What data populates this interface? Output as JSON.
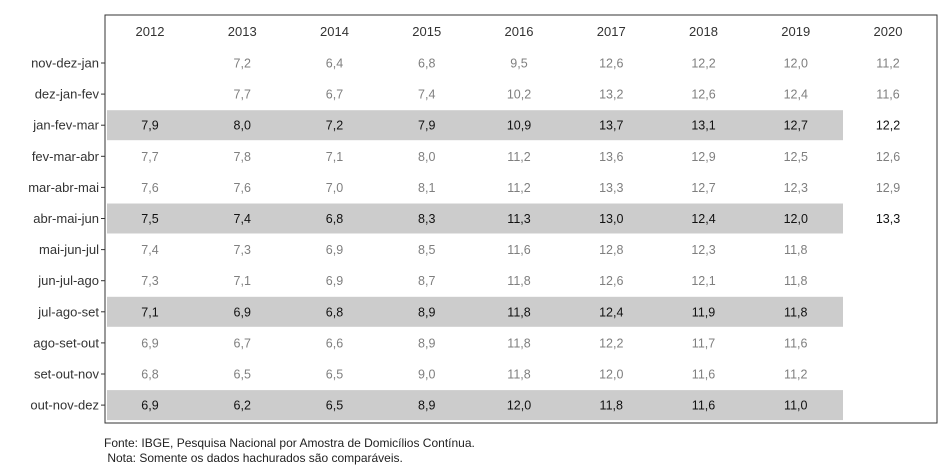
{
  "chart_data": {
    "type": "table",
    "columns": [
      "2012",
      "2013",
      "2014",
      "2015",
      "2016",
      "2017",
      "2018",
      "2019",
      "2020"
    ],
    "rows": [
      {
        "label": "nov-dez-jan",
        "values": [
          "",
          "7,2",
          "6,4",
          "6,8",
          "9,5",
          "12,6",
          "12,2",
          "12,0",
          "11,2"
        ],
        "highlight": false
      },
      {
        "label": "dez-jan-fev",
        "values": [
          "",
          "7,7",
          "6,7",
          "7,4",
          "10,2",
          "13,2",
          "12,6",
          "12,4",
          "11,6"
        ],
        "highlight": false
      },
      {
        "label": "jan-fev-mar",
        "values": [
          "7,9",
          "8,0",
          "7,2",
          "7,9",
          "10,9",
          "13,7",
          "13,1",
          "12,7",
          "12,2"
        ],
        "highlight": true
      },
      {
        "label": "fev-mar-abr",
        "values": [
          "7,7",
          "7,8",
          "7,1",
          "8,0",
          "11,2",
          "13,6",
          "12,9",
          "12,5",
          "12,6"
        ],
        "highlight": false
      },
      {
        "label": "mar-abr-mai",
        "values": [
          "7,6",
          "7,6",
          "7,0",
          "8,1",
          "11,2",
          "13,3",
          "12,7",
          "12,3",
          "12,9"
        ],
        "highlight": false
      },
      {
        "label": "abr-mai-jun",
        "values": [
          "7,5",
          "7,4",
          "6,8",
          "8,3",
          "11,3",
          "13,0",
          "12,4",
          "12,0",
          "13,3"
        ],
        "highlight": true
      },
      {
        "label": "mai-jun-jul",
        "values": [
          "7,4",
          "7,3",
          "6,9",
          "8,5",
          "11,6",
          "12,8",
          "12,3",
          "11,8",
          ""
        ],
        "highlight": false
      },
      {
        "label": "jun-jul-ago",
        "values": [
          "7,3",
          "7,1",
          "6,9",
          "8,7",
          "11,8",
          "12,6",
          "12,1",
          "11,8",
          ""
        ],
        "highlight": false
      },
      {
        "label": "jul-ago-set",
        "values": [
          "7,1",
          "6,9",
          "6,8",
          "8,9",
          "11,8",
          "12,4",
          "11,9",
          "11,8",
          ""
        ],
        "highlight": true
      },
      {
        "label": "ago-set-out",
        "values": [
          "6,9",
          "6,7",
          "6,6",
          "8,9",
          "11,8",
          "12,2",
          "11,7",
          "11,6",
          ""
        ],
        "highlight": false
      },
      {
        "label": "set-out-nov",
        "values": [
          "6,8",
          "6,5",
          "6,5",
          "9,0",
          "11,8",
          "12,0",
          "11,6",
          "11,2",
          ""
        ],
        "highlight": false
      },
      {
        "label": "out-nov-dez",
        "values": [
          "6,9",
          "6,2",
          "6,5",
          "8,9",
          "12,0",
          "11,8",
          "11,6",
          "11,0",
          ""
        ],
        "highlight": true
      }
    ],
    "colors": {
      "highlight_band": "#cccccc",
      "highlight_text": "#111111",
      "normal_text": "#7f7f7f",
      "label_text": "#333333"
    }
  },
  "footnotes": {
    "source": "Fonte: IBGE, Pesquisa Nacional por Amostra de Domicílios Contínua.",
    "note": " Nota: Somente os dados hachurados são comparáveis."
  }
}
